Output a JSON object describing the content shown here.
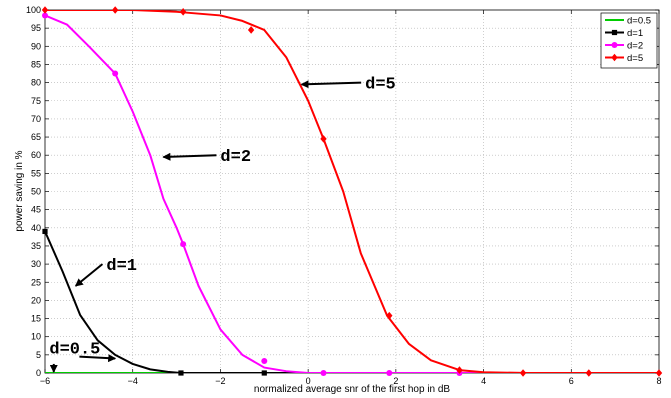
{
  "chart_data": {
    "type": "line",
    "xlabel": "normalized average snr of the first hop in dB",
    "ylabel": "power saving in %",
    "xlim": [
      -6,
      8
    ],
    "ylim": [
      0,
      100
    ],
    "xticks": [
      -6,
      -4,
      -2,
      0,
      2,
      4,
      6,
      8
    ],
    "yticks": [
      0,
      5,
      10,
      15,
      20,
      25,
      30,
      35,
      40,
      45,
      50,
      55,
      60,
      65,
      70,
      75,
      80,
      85,
      90,
      95,
      100
    ],
    "grid": true,
    "legend_position": "top-right",
    "series": [
      {
        "name": "d=0.5",
        "color": "#00cc00",
        "marker": "none",
        "x": [
          -6,
          8
        ],
        "y": [
          0,
          0
        ]
      },
      {
        "name": "d=1",
        "color": "#000000",
        "marker": "square",
        "x": [
          -6.0,
          -5.6,
          -5.2,
          -4.8,
          -4.4,
          -4.0,
          -3.6,
          -3.2,
          -2.9,
          -2.0,
          -1.0,
          0,
          2,
          4,
          6,
          8
        ],
        "y": [
          39,
          28,
          16,
          9,
          5,
          2.5,
          1,
          0.3,
          0,
          0,
          0,
          0,
          0,
          0,
          0,
          0
        ],
        "markers_x": [
          -6.0,
          -2.9,
          -1.0
        ],
        "markers_y": [
          39,
          0,
          0
        ]
      },
      {
        "name": "d=2",
        "color": "#ff00ff",
        "marker": "circle",
        "x": [
          -6.0,
          -5.5,
          -5.0,
          -4.4,
          -4.0,
          -3.6,
          -3.3,
          -3.0,
          -2.85,
          -2.5,
          -2.0,
          -1.5,
          -1.0,
          -0.5,
          0,
          1,
          2,
          4,
          6,
          8
        ],
        "y": [
          98.5,
          96,
          90,
          82.5,
          72,
          60,
          48,
          40,
          35.5,
          24,
          12,
          5,
          1.5,
          0.5,
          0,
          0,
          0,
          0,
          0,
          0
        ],
        "markers_x": [
          -6.0,
          -4.4,
          -2.85,
          -1.0,
          0.35,
          1.85,
          3.45
        ],
        "markers_y": [
          98.5,
          82.5,
          35.5,
          3.3,
          0,
          0,
          0
        ]
      },
      {
        "name": "d=5",
        "color": "#ff0000",
        "marker": "diamond",
        "x": [
          -6.0,
          -5.0,
          -4.0,
          -3.0,
          -2.0,
          -1.5,
          -1.0,
          -0.5,
          0.0,
          0.35,
          0.8,
          1.2,
          1.8,
          2.3,
          2.8,
          3.45,
          4.0,
          5.0,
          6.0,
          8.0
        ],
        "y": [
          100,
          100,
          100,
          99.5,
          98.5,
          97,
          94.5,
          87,
          75,
          64.5,
          50,
          33,
          15.8,
          8,
          3.5,
          0.8,
          0.2,
          0,
          0,
          0
        ],
        "markers_x": [
          -6.0,
          -4.4,
          -2.85,
          -1.3,
          0.35,
          1.85,
          3.45,
          4.9,
          6.4,
          8.0
        ],
        "markers_y": [
          100,
          100,
          99.5,
          94.5,
          64.5,
          15.8,
          0.8,
          0,
          0,
          0
        ]
      }
    ],
    "annotations": [
      {
        "text": "d=5",
        "x": 1.3,
        "y": 80,
        "arrow_to_x": -0.15,
        "arrow_to_y": 79.5
      },
      {
        "text": "d=2",
        "x": -2.0,
        "y": 60,
        "arrow_to_x": -3.3,
        "arrow_to_y": 59.5
      },
      {
        "text": "d=1",
        "x": -4.6,
        "y": 30,
        "arrow_to_x": -5.3,
        "arrow_to_y": 24
      },
      {
        "text": "d=0.5",
        "x": -5.9,
        "y": 7,
        "arrow_to_x": -4.4,
        "arrow_to_y": 4
      },
      {
        "text": "",
        "x": -5.8,
        "y": 2.5,
        "arrow_to_x": -5.8,
        "arrow_to_y": 0.3
      }
    ]
  }
}
